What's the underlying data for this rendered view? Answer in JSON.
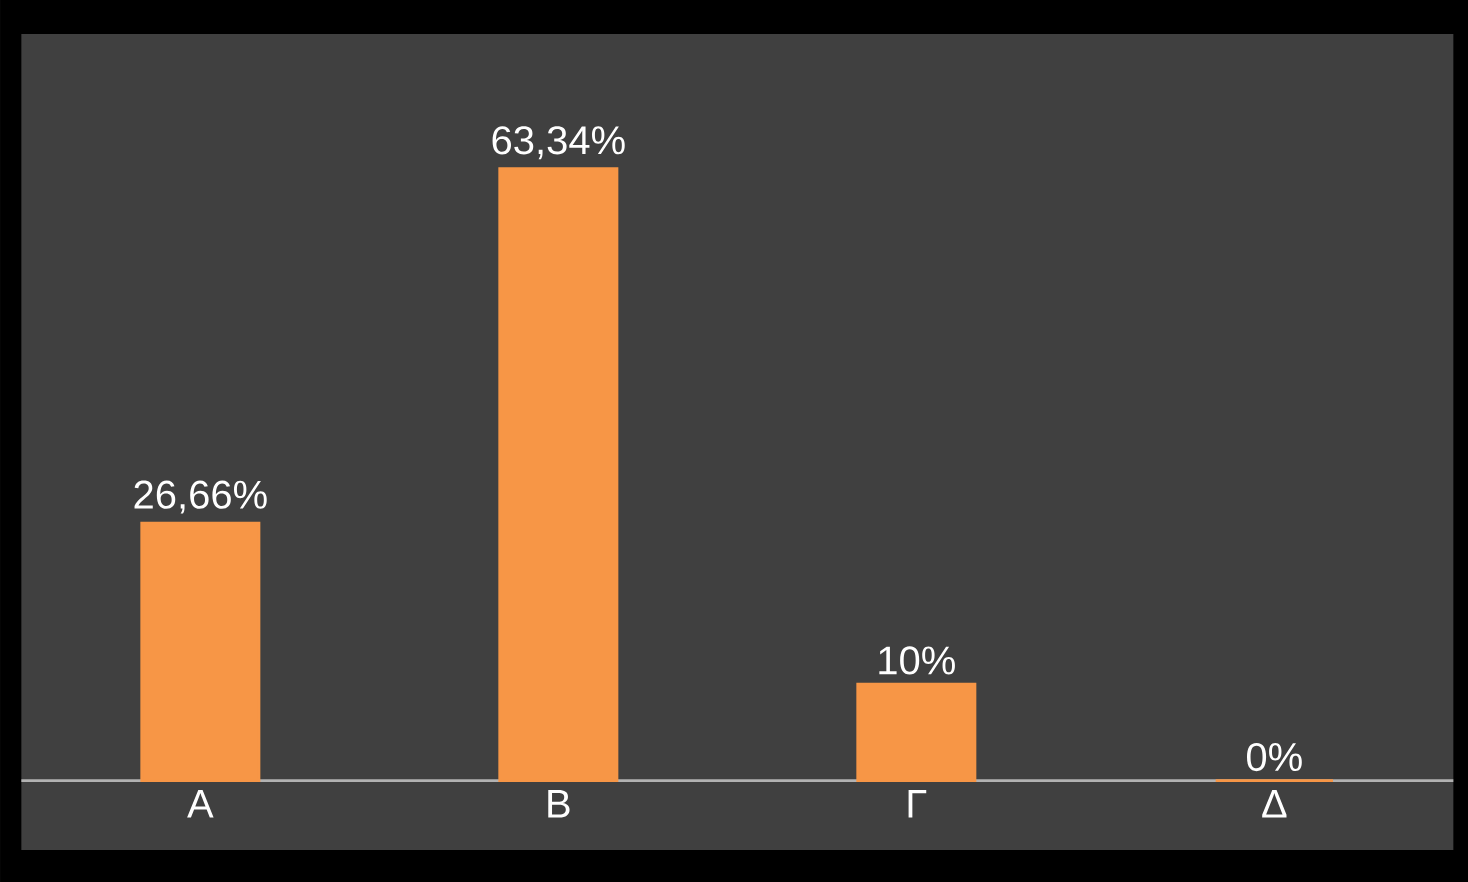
{
  "chart_data": {
    "type": "bar",
    "categories": [
      "Α",
      "Β",
      "Γ",
      "Δ"
    ],
    "values": [
      26.66,
      63.34,
      10,
      0
    ],
    "value_labels": [
      "26,66%",
      "63,34%",
      "10%",
      "0%"
    ],
    "color": "#f79646"
  }
}
